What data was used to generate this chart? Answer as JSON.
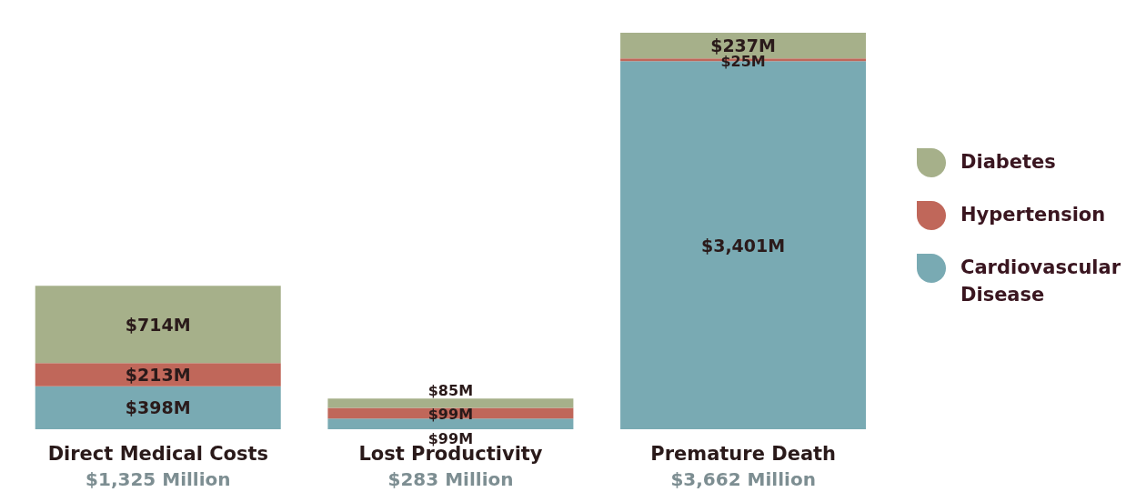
{
  "chart_data": {
    "type": "bar",
    "stacked": true,
    "categories": [
      "Direct Medical Costs",
      "Lost Productivity",
      "Premature Death"
    ],
    "series": [
      {
        "name": "Cardiovascular Disease",
        "color": "#79aab3",
        "values": [
          398,
          99,
          3401
        ],
        "value_labels": [
          "$398M",
          "$99M",
          "$3,401M"
        ]
      },
      {
        "name": "Hypertension",
        "color": "#c0675a",
        "values": [
          213,
          99,
          25
        ],
        "value_labels": [
          "$213M",
          "$99M",
          "$25M"
        ]
      },
      {
        "name": "Diabetes",
        "color": "#a6b08a",
        "values": [
          714,
          85,
          237
        ],
        "value_labels": [
          "$714M",
          "$85M",
          "$237M"
        ]
      }
    ],
    "totals": [
      "$1,325 Million",
      "$283 Million",
      "$3,662 Million"
    ],
    "legend": "right",
    "data_labels": true,
    "grid": false
  }
}
